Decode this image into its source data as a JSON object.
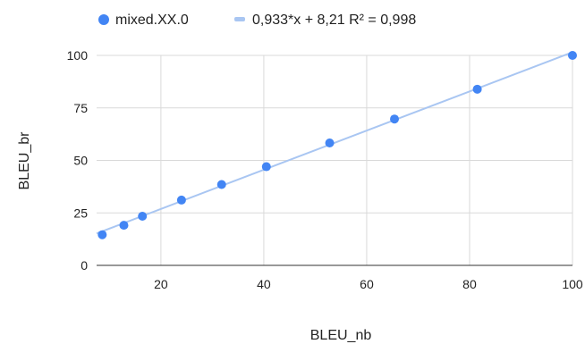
{
  "chart_data": {
    "type": "scatter",
    "xlabel": "BLEU_nb",
    "ylabel": "BLEU_br",
    "xlim": [
      7.5,
      100
    ],
    "ylim": [
      0,
      100
    ],
    "x_ticks": [
      20,
      40,
      60,
      80,
      100
    ],
    "y_ticks": [
      0,
      25,
      50,
      75,
      100
    ],
    "grid": true,
    "legend_position": "top",
    "series": [
      {
        "name": "mixed.XX.0",
        "color": "#4285f4",
        "points": [
          {
            "x": 8.6,
            "y": 14.6
          },
          {
            "x": 12.8,
            "y": 19.1
          },
          {
            "x": 16.4,
            "y": 23.4
          },
          {
            "x": 24.0,
            "y": 31.1
          },
          {
            "x": 31.8,
            "y": 38.5
          },
          {
            "x": 40.5,
            "y": 47.0
          },
          {
            "x": 52.8,
            "y": 58.3
          },
          {
            "x": 65.4,
            "y": 69.7
          },
          {
            "x": 81.5,
            "y": 83.9
          },
          {
            "x": 100.0,
            "y": 100.0
          }
        ]
      }
    ],
    "trendline": {
      "label": "0,933*x + 8,21 R² = 0,998",
      "slope": 0.933,
      "intercept": 8.21,
      "color": "#a9c6f2"
    }
  }
}
